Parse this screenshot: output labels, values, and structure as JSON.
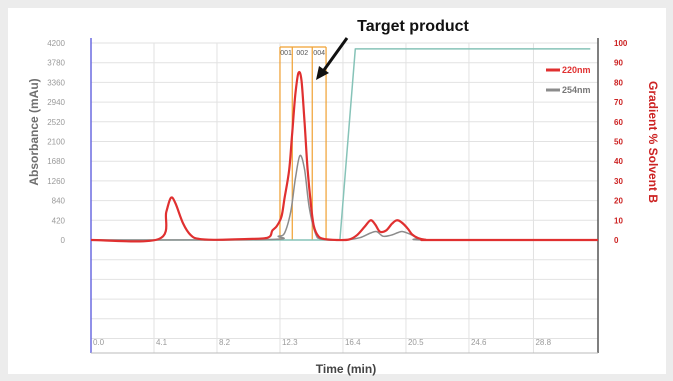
{
  "chart_data": {
    "type": "line",
    "xlabel": "Time (min)",
    "ylabel": "Absorbance (mAu)",
    "y2label": "Gradient % Solvent B",
    "xlim": [
      0,
      33
    ],
    "x_ticks": [
      "0.0",
      "4.1",
      "8.2",
      "12.3",
      "16.4",
      "20.5",
      "24.6",
      "28.8"
    ],
    "x_tick_values": [
      0,
      4.1,
      8.2,
      12.3,
      16.4,
      20.5,
      24.6,
      28.8
    ],
    "ylim": [
      0,
      4200
    ],
    "y_ticks": [
      0,
      420,
      840,
      1260,
      1680,
      2100,
      2520,
      2940,
      3360,
      3780,
      4200
    ],
    "y2lim": [
      0,
      100
    ],
    "y2_ticks": [
      0,
      10,
      20,
      30,
      40,
      50,
      60,
      70,
      80,
      90,
      100
    ],
    "grid": true,
    "legend_position": "top-right",
    "series": [
      {
        "name": "220nm",
        "color": "#e03030",
        "axis": "left",
        "x": [
          0,
          4.4,
          4.9,
          5.2,
          5.5,
          6.0,
          6.5,
          7.0,
          8.0,
          10.0,
          11.5,
          11.8,
          12.1,
          12.4,
          12.6,
          12.9,
          13.1,
          13.3,
          13.5,
          13.7,
          13.9,
          14.1,
          14.3,
          14.5,
          14.8,
          15.2,
          16.0,
          16.8,
          17.3,
          17.8,
          18.2,
          18.5,
          18.8,
          19.2,
          19.6,
          19.9,
          20.2,
          20.6,
          20.9,
          21.3,
          21.8,
          22.5,
          33
        ],
        "y": [
          0,
          20,
          600,
          900,
          780,
          350,
          100,
          25,
          5,
          20,
          50,
          200,
          300,
          500,
          900,
          1500,
          2300,
          3100,
          3560,
          3400,
          2500,
          1500,
          800,
          300,
          80,
          20,
          0,
          10,
          100,
          280,
          420,
          330,
          180,
          200,
          350,
          420,
          380,
          250,
          120,
          40,
          5,
          0,
          0
        ]
      },
      {
        "name": "254nm",
        "color": "#8c8c8c",
        "axis": "left",
        "x": [
          0,
          11.5,
          12.2,
          12.6,
          13.0,
          13.3,
          13.6,
          13.9,
          14.2,
          14.6,
          15.0,
          16.5,
          17.5,
          18.2,
          18.6,
          19.0,
          19.5,
          20.0,
          20.3,
          20.8,
          21.3,
          22.0,
          33
        ],
        "y": [
          0,
          10,
          80,
          150,
          600,
          1300,
          1800,
          1500,
          700,
          150,
          20,
          0,
          50,
          150,
          180,
          80,
          100,
          160,
          180,
          120,
          40,
          0,
          0
        ]
      },
      {
        "name": "Gradient",
        "color": "#86c3b8",
        "axis": "right",
        "x": [
          0,
          16.2,
          17.2,
          32.5
        ],
        "y": [
          0,
          0,
          97,
          97
        ]
      }
    ],
    "fractions": {
      "labels": [
        "001",
        "002",
        "004"
      ],
      "boundaries": [
        12.3,
        13.1,
        14.4,
        15.3
      ],
      "color": "#f0a030"
    },
    "annotation": {
      "text": "Target product",
      "x": 13.6,
      "y": 3600
    }
  }
}
